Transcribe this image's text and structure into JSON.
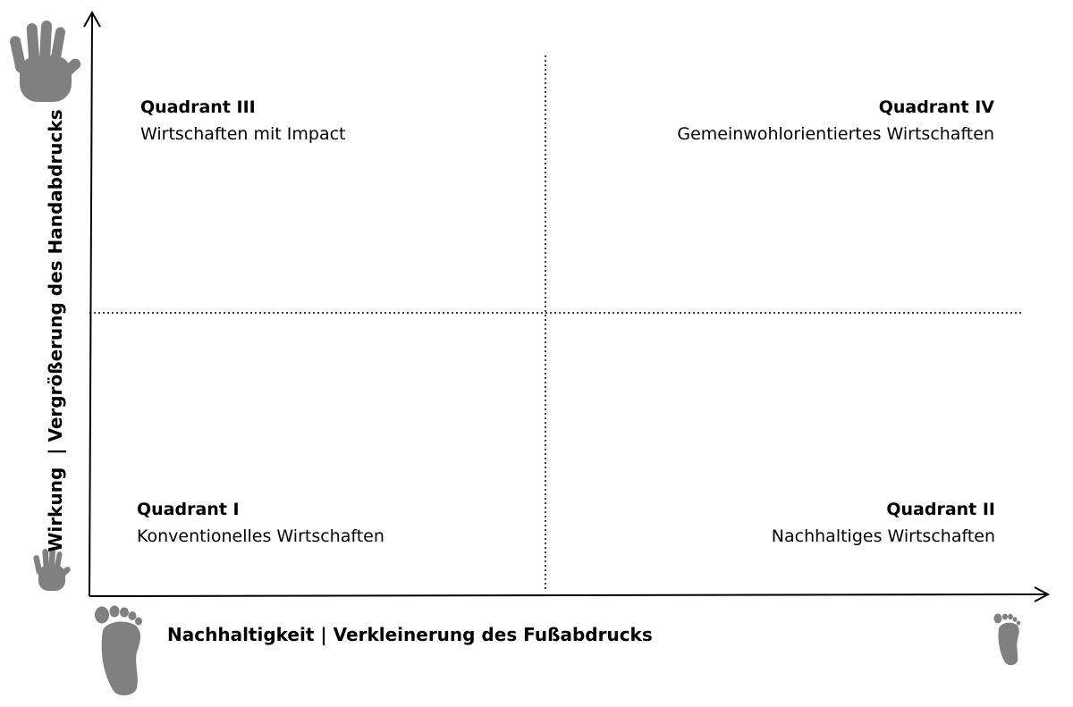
{
  "diagram": {
    "x_axis_label": "Nachhaltigkeit | Verkleinerung des Fußabdrucks",
    "y_axis_label": "Wirkung  | Vergrößerung des Handabdrucks",
    "icons": [
      "hand-large-icon",
      "hand-small-icon",
      "foot-large-icon",
      "foot-small-icon"
    ],
    "icon_color": "#808080",
    "quadrants": {
      "q3": {
        "title": "Quadrant III",
        "subtitle": "Wirtschaften mit Impact"
      },
      "q4": {
        "title": "Quadrant IV",
        "subtitle": "Gemeinwohlorientiertes Wirtschaften"
      },
      "q1": {
        "title": "Quadrant I",
        "subtitle": "Konventionelles Wirtschaften"
      },
      "q2": {
        "title": "Quadrant II",
        "subtitle": "Nachhaltiges Wirtschaften"
      }
    }
  }
}
